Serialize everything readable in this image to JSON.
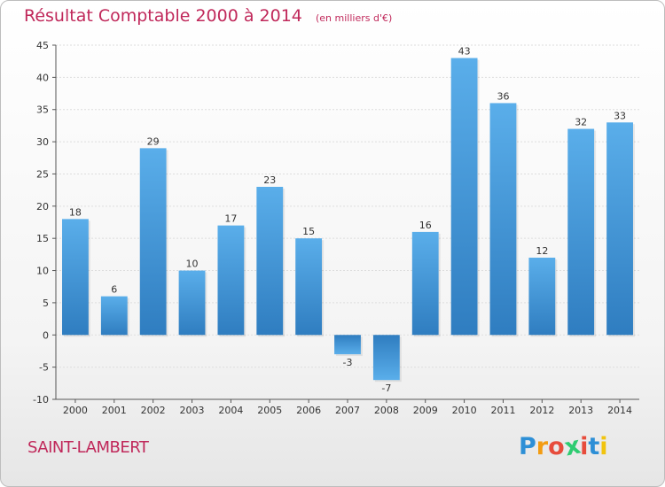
{
  "header": {
    "title": "Résultat Comptable 2000 à 2014",
    "subtitle": "(en milliers d'€)"
  },
  "footer": {
    "location": "SAINT-LAMBERT",
    "brand": {
      "letters": [
        "P",
        "r",
        "o",
        "x",
        "i",
        "t",
        "i"
      ],
      "colors": [
        "#2d8fd6",
        "#f39c12",
        "#e74c3c",
        "#2ecc71",
        "#e74c3c",
        "#2d8fd6",
        "#f1c40f"
      ]
    }
  },
  "colors": {
    "bar_light": "#5aaeea",
    "bar_dark": "#2f7dc0",
    "accent": "#c0285a",
    "grid": "#dddddd",
    "axis": "#555555"
  },
  "chart_data": {
    "type": "bar",
    "title": "Résultat Comptable 2000 à 2014",
    "subtitle": "(en milliers d'€)",
    "categories": [
      "2000",
      "2001",
      "2002",
      "2003",
      "2004",
      "2005",
      "2006",
      "2007",
      "2008",
      "2009",
      "2010",
      "2011",
      "2012",
      "2013",
      "2014"
    ],
    "values": [
      18,
      6,
      29,
      10,
      17,
      23,
      15,
      -3,
      -7,
      16,
      43,
      36,
      12,
      32,
      33
    ],
    "ylim": [
      -10,
      45
    ],
    "yticks": [
      -10,
      -5,
      0,
      5,
      10,
      15,
      20,
      25,
      30,
      35,
      40,
      45
    ],
    "xlabel": "",
    "ylabel": "",
    "grid": true,
    "legend": "none"
  }
}
